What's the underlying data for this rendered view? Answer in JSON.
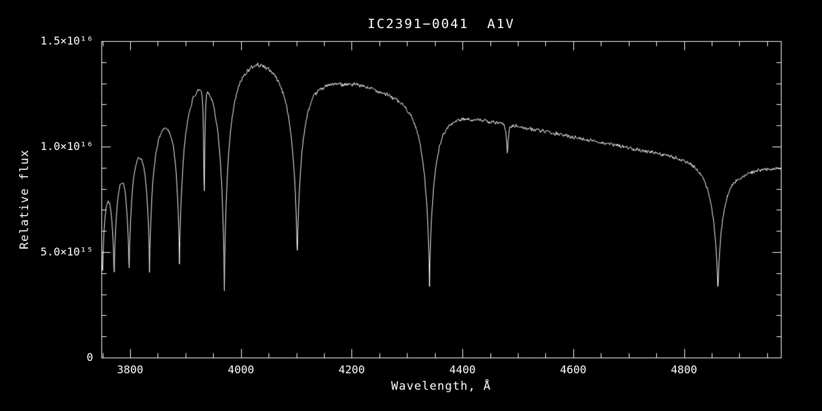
{
  "chart_data": {
    "type": "line",
    "title": "IC2391−0041  A1V",
    "xlabel": "Wavelength, Å",
    "ylabel": "Relative flux",
    "xlim": [
      3748,
      4975
    ],
    "ylim": [
      0,
      1.5e+16
    ],
    "x_ticks": [
      {
        "value": 3800,
        "label": "3800"
      },
      {
        "value": 4000,
        "label": "4000"
      },
      {
        "value": 4200,
        "label": "4200"
      },
      {
        "value": 4400,
        "label": "4400"
      },
      {
        "value": 4600,
        "label": "4600"
      },
      {
        "value": 4800,
        "label": "4800"
      }
    ],
    "y_ticks": [
      {
        "value": 0,
        "label": "0"
      },
      {
        "value": 5000000000000000.0,
        "label": "5.0×10¹⁵"
      },
      {
        "value": 1e+16,
        "label": "1.0×10¹⁶"
      },
      {
        "value": 1.5e+16,
        "label": "1.5×10¹⁶"
      }
    ],
    "x_minor_tick_step": 50,
    "y_minor_tick_step": 1000000000000000.0,
    "grid": false,
    "legend": null,
    "background_color": "#000000",
    "line_color": "#ffffff",
    "axis_color": "#ffffff",
    "flux_unit": 1000000000000000.0,
    "sample_step": 0.75,
    "noise_amplitude": 0.12,
    "continuum": [
      [
        3748,
        8.9
      ],
      [
        3770,
        9.3
      ],
      [
        3800,
        10.2
      ],
      [
        3830,
        10.9
      ],
      [
        3860,
        11.6
      ],
      [
        3890,
        12.3
      ],
      [
        3915,
        13.1
      ],
      [
        3940,
        13.5
      ],
      [
        3970,
        13.7
      ],
      [
        4000,
        13.95
      ],
      [
        4030,
        14.15
      ],
      [
        4060,
        13.95
      ],
      [
        4090,
        13.6
      ],
      [
        4120,
        13.35
      ],
      [
        4150,
        13.15
      ],
      [
        4180,
        13.05
      ],
      [
        4210,
        12.95
      ],
      [
        4240,
        12.75
      ],
      [
        4270,
        12.5
      ],
      [
        4300,
        12.25
      ],
      [
        4340,
        11.95
      ],
      [
        4370,
        11.65
      ],
      [
        4400,
        11.45
      ],
      [
        4440,
        11.25
      ],
      [
        4480,
        11.05
      ],
      [
        4520,
        10.85
      ],
      [
        4560,
        10.65
      ],
      [
        4600,
        10.45
      ],
      [
        4650,
        10.2
      ],
      [
        4700,
        9.95
      ],
      [
        4750,
        9.7
      ],
      [
        4800,
        9.45
      ],
      [
        4840,
        9.25
      ],
      [
        4870,
        9.05
      ],
      [
        4900,
        8.85
      ],
      [
        4940,
        8.95
      ],
      [
        4975,
        9.0
      ]
    ],
    "absorption_lines": [
      {
        "center": 3750.0,
        "depth": 0.58,
        "width": 5.0,
        "power": 0.8
      },
      {
        "center": 3771.0,
        "depth": 0.6,
        "width": 5.0,
        "power": 0.8
      },
      {
        "center": 3798.0,
        "depth": 0.62,
        "width": 5.5,
        "power": 0.8
      },
      {
        "center": 3835.0,
        "depth": 0.63,
        "width": 6.5,
        "power": 0.8
      },
      {
        "center": 3889.0,
        "depth": 0.64,
        "width": 7.5,
        "power": 0.8
      },
      {
        "center": 3933.7,
        "depth": 0.48,
        "width": 1.3,
        "power": 1.0
      },
      {
        "center": 3970.0,
        "depth": 0.77,
        "width": 8.5,
        "power": 0.75
      },
      {
        "center": 4101.7,
        "depth": 0.67,
        "width": 10.0,
        "power": 0.75
      },
      {
        "center": 4340.5,
        "depth": 0.72,
        "width": 10.0,
        "power": 0.75
      },
      {
        "center": 4481.0,
        "depth": 0.14,
        "width": 2.0,
        "power": 1.0
      },
      {
        "center": 4861.3,
        "depth": 0.68,
        "width": 10.0,
        "power": 0.75
      }
    ]
  }
}
